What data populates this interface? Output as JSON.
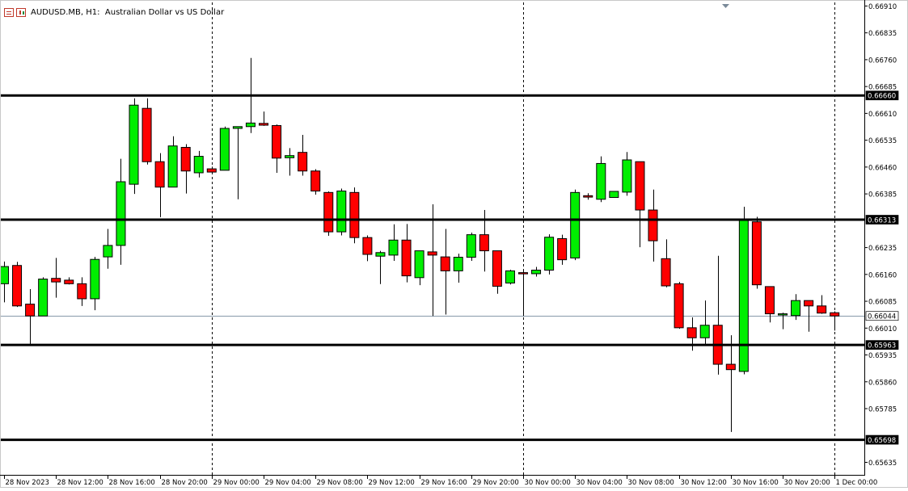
{
  "header": {
    "symbol": "AUDUSD.MB",
    "timeframe": "H1",
    "description": "Australian Dollar vs US Dollar",
    "icons": [
      "window-menu-icon",
      "chart-type-icon"
    ]
  },
  "colors": {
    "bull": "#00ee00",
    "bear": "#ff0000",
    "outline": "#000000",
    "background": "#ffffff",
    "bid_line": "#8899aa"
  },
  "chart_data": {
    "type": "candlestick",
    "symbol": "AUDUSD.MB",
    "timeframe": "H1",
    "ylim": [
      0.656,
      0.6692
    ],
    "y_ticks": [
      "0.66910",
      "0.66835",
      "0.66760",
      "0.66685",
      "0.66610",
      "0.66535",
      "0.66460",
      "0.66385",
      "0.66235",
      "0.66160",
      "0.66085",
      "0.66010",
      "0.65935",
      "0.65860",
      "0.65785",
      "0.65635"
    ],
    "x_ticks": [
      "28 Nov 2023",
      "28 Nov 12:00",
      "28 Nov 16:00",
      "28 Nov 20:00",
      "29 Nov 00:00",
      "29 Nov 04:00",
      "29 Nov 08:00",
      "29 Nov 12:00",
      "29 Nov 16:00",
      "29 Nov 20:00",
      "30 Nov 00:00",
      "30 Nov 04:00",
      "30 Nov 08:00",
      "30 Nov 12:00",
      "30 Nov 16:00",
      "30 Nov 20:00",
      "1 Dec 00:00"
    ],
    "day_separators": [
      "29 Nov 00:00",
      "30 Nov 00:00",
      "1 Dec 00:00"
    ],
    "horizontal_levels": [
      {
        "label": "0.66660",
        "value": 0.6666
      },
      {
        "label": "0.66313",
        "value": 0.66313
      },
      {
        "label": "0.65963",
        "value": 0.65963
      },
      {
        "label": "0.65698",
        "value": 0.65698
      }
    ],
    "current_price": {
      "label": "0.66044",
      "value": 0.66044
    },
    "candles": [
      {
        "o": 0.66134,
        "h": 0.66196,
        "l": 0.66082,
        "c": 0.66182
      },
      {
        "o": 0.66185,
        "h": 0.66195,
        "l": 0.66069,
        "c": 0.66072
      },
      {
        "o": 0.66077,
        "h": 0.66119,
        "l": 0.65963,
        "c": 0.66044
      },
      {
        "o": 0.66044,
        "h": 0.66152,
        "l": 0.66044,
        "c": 0.66147
      },
      {
        "o": 0.66149,
        "h": 0.66206,
        "l": 0.66095,
        "c": 0.66139
      },
      {
        "o": 0.66144,
        "h": 0.66152,
        "l": 0.66132,
        "c": 0.66134
      },
      {
        "o": 0.66134,
        "h": 0.66152,
        "l": 0.66072,
        "c": 0.66092
      },
      {
        "o": 0.66092,
        "h": 0.66209,
        "l": 0.6606,
        "c": 0.66202
      },
      {
        "o": 0.66209,
        "h": 0.66287,
        "l": 0.66176,
        "c": 0.66241
      },
      {
        "o": 0.66241,
        "h": 0.66483,
        "l": 0.66187,
        "c": 0.66419
      },
      {
        "o": 0.66412,
        "h": 0.66652,
        "l": 0.66385,
        "c": 0.66633
      },
      {
        "o": 0.66624,
        "h": 0.66652,
        "l": 0.66467,
        "c": 0.66475
      },
      {
        "o": 0.66475,
        "h": 0.66499,
        "l": 0.6632,
        "c": 0.66404
      },
      {
        "o": 0.66404,
        "h": 0.66546,
        "l": 0.66404,
        "c": 0.66519
      },
      {
        "o": 0.66515,
        "h": 0.66524,
        "l": 0.66386,
        "c": 0.66449
      },
      {
        "o": 0.66444,
        "h": 0.66505,
        "l": 0.66431,
        "c": 0.6649
      },
      {
        "o": 0.66455,
        "h": 0.66461,
        "l": 0.66444,
        "c": 0.66446
      },
      {
        "o": 0.66451,
        "h": 0.66573,
        "l": 0.66451,
        "c": 0.66568
      },
      {
        "o": 0.66568,
        "h": 0.66573,
        "l": 0.6637,
        "c": 0.66573
      },
      {
        "o": 0.66573,
        "h": 0.66765,
        "l": 0.66555,
        "c": 0.66583
      },
      {
        "o": 0.66582,
        "h": 0.66615,
        "l": 0.66575,
        "c": 0.66577
      },
      {
        "o": 0.66576,
        "h": 0.66579,
        "l": 0.66444,
        "c": 0.66485
      },
      {
        "o": 0.66486,
        "h": 0.66513,
        "l": 0.66436,
        "c": 0.66492
      },
      {
        "o": 0.66501,
        "h": 0.6655,
        "l": 0.66436,
        "c": 0.66449
      },
      {
        "o": 0.66449,
        "h": 0.66454,
        "l": 0.66383,
        "c": 0.66393
      },
      {
        "o": 0.66389,
        "h": 0.66392,
        "l": 0.66268,
        "c": 0.66279
      },
      {
        "o": 0.66279,
        "h": 0.664,
        "l": 0.66269,
        "c": 0.66393
      },
      {
        "o": 0.66389,
        "h": 0.66403,
        "l": 0.66247,
        "c": 0.66263
      },
      {
        "o": 0.66263,
        "h": 0.66269,
        "l": 0.66197,
        "c": 0.66216
      },
      {
        "o": 0.66211,
        "h": 0.66226,
        "l": 0.66133,
        "c": 0.66221
      },
      {
        "o": 0.66214,
        "h": 0.663,
        "l": 0.66198,
        "c": 0.66256
      },
      {
        "o": 0.66256,
        "h": 0.66301,
        "l": 0.66138,
        "c": 0.66156
      },
      {
        "o": 0.66151,
        "h": 0.66225,
        "l": 0.6613,
        "c": 0.66226
      },
      {
        "o": 0.66223,
        "h": 0.66356,
        "l": 0.66044,
        "c": 0.66214
      },
      {
        "o": 0.66209,
        "h": 0.66287,
        "l": 0.66048,
        "c": 0.6617
      },
      {
        "o": 0.6617,
        "h": 0.66218,
        "l": 0.66137,
        "c": 0.66208
      },
      {
        "o": 0.66208,
        "h": 0.66277,
        "l": 0.66198,
        "c": 0.66271
      },
      {
        "o": 0.66271,
        "h": 0.6634,
        "l": 0.66168,
        "c": 0.66226
      },
      {
        "o": 0.66226,
        "h": 0.66226,
        "l": 0.66106,
        "c": 0.66127
      },
      {
        "o": 0.66136,
        "h": 0.66173,
        "l": 0.66132,
        "c": 0.6617
      },
      {
        "o": 0.66165,
        "h": 0.66171,
        "l": 0.66044,
        "c": 0.66162
      },
      {
        "o": 0.66162,
        "h": 0.66181,
        "l": 0.66154,
        "c": 0.66172
      },
      {
        "o": 0.66172,
        "h": 0.66272,
        "l": 0.6616,
        "c": 0.66264
      },
      {
        "o": 0.6626,
        "h": 0.66271,
        "l": 0.66187,
        "c": 0.66201
      },
      {
        "o": 0.66206,
        "h": 0.66397,
        "l": 0.662,
        "c": 0.66389
      },
      {
        "o": 0.6638,
        "h": 0.66387,
        "l": 0.66369,
        "c": 0.66376
      },
      {
        "o": 0.6637,
        "h": 0.6649,
        "l": 0.66362,
        "c": 0.6647
      },
      {
        "o": 0.66375,
        "h": 0.6639,
        "l": 0.66378,
        "c": 0.66392
      },
      {
        "o": 0.6639,
        "h": 0.66502,
        "l": 0.6638,
        "c": 0.6648
      },
      {
        "o": 0.66475,
        "h": 0.66475,
        "l": 0.66236,
        "c": 0.6634
      },
      {
        "o": 0.6634,
        "h": 0.66397,
        "l": 0.66196,
        "c": 0.66254
      },
      {
        "o": 0.66204,
        "h": 0.66258,
        "l": 0.66124,
        "c": 0.66128
      },
      {
        "o": 0.66134,
        "h": 0.66139,
        "l": 0.66008,
        "c": 0.66011
      },
      {
        "o": 0.66011,
        "h": 0.6604,
        "l": 0.65947,
        "c": 0.65983
      },
      {
        "o": 0.65983,
        "h": 0.66087,
        "l": 0.65963,
        "c": 0.66018
      },
      {
        "o": 0.66018,
        "h": 0.66212,
        "l": 0.6588,
        "c": 0.65909
      },
      {
        "o": 0.65909,
        "h": 0.6599,
        "l": 0.6572,
        "c": 0.65894
      },
      {
        "o": 0.65889,
        "h": 0.66349,
        "l": 0.65881,
        "c": 0.66313
      },
      {
        "o": 0.66307,
        "h": 0.66321,
        "l": 0.6612,
        "c": 0.66131
      },
      {
        "o": 0.66126,
        "h": 0.66127,
        "l": 0.66026,
        "c": 0.6605
      },
      {
        "o": 0.66047,
        "h": 0.66053,
        "l": 0.66007,
        "c": 0.6605
      },
      {
        "o": 0.66045,
        "h": 0.66105,
        "l": 0.66033,
        "c": 0.66087
      },
      {
        "o": 0.66087,
        "h": 0.66087,
        "l": 0.66,
        "c": 0.66072
      },
      {
        "o": 0.66072,
        "h": 0.66102,
        "l": 0.6605,
        "c": 0.66052
      },
      {
        "o": 0.66053,
        "h": 0.66057,
        "l": 0.66003,
        "c": 0.66044
      }
    ]
  }
}
